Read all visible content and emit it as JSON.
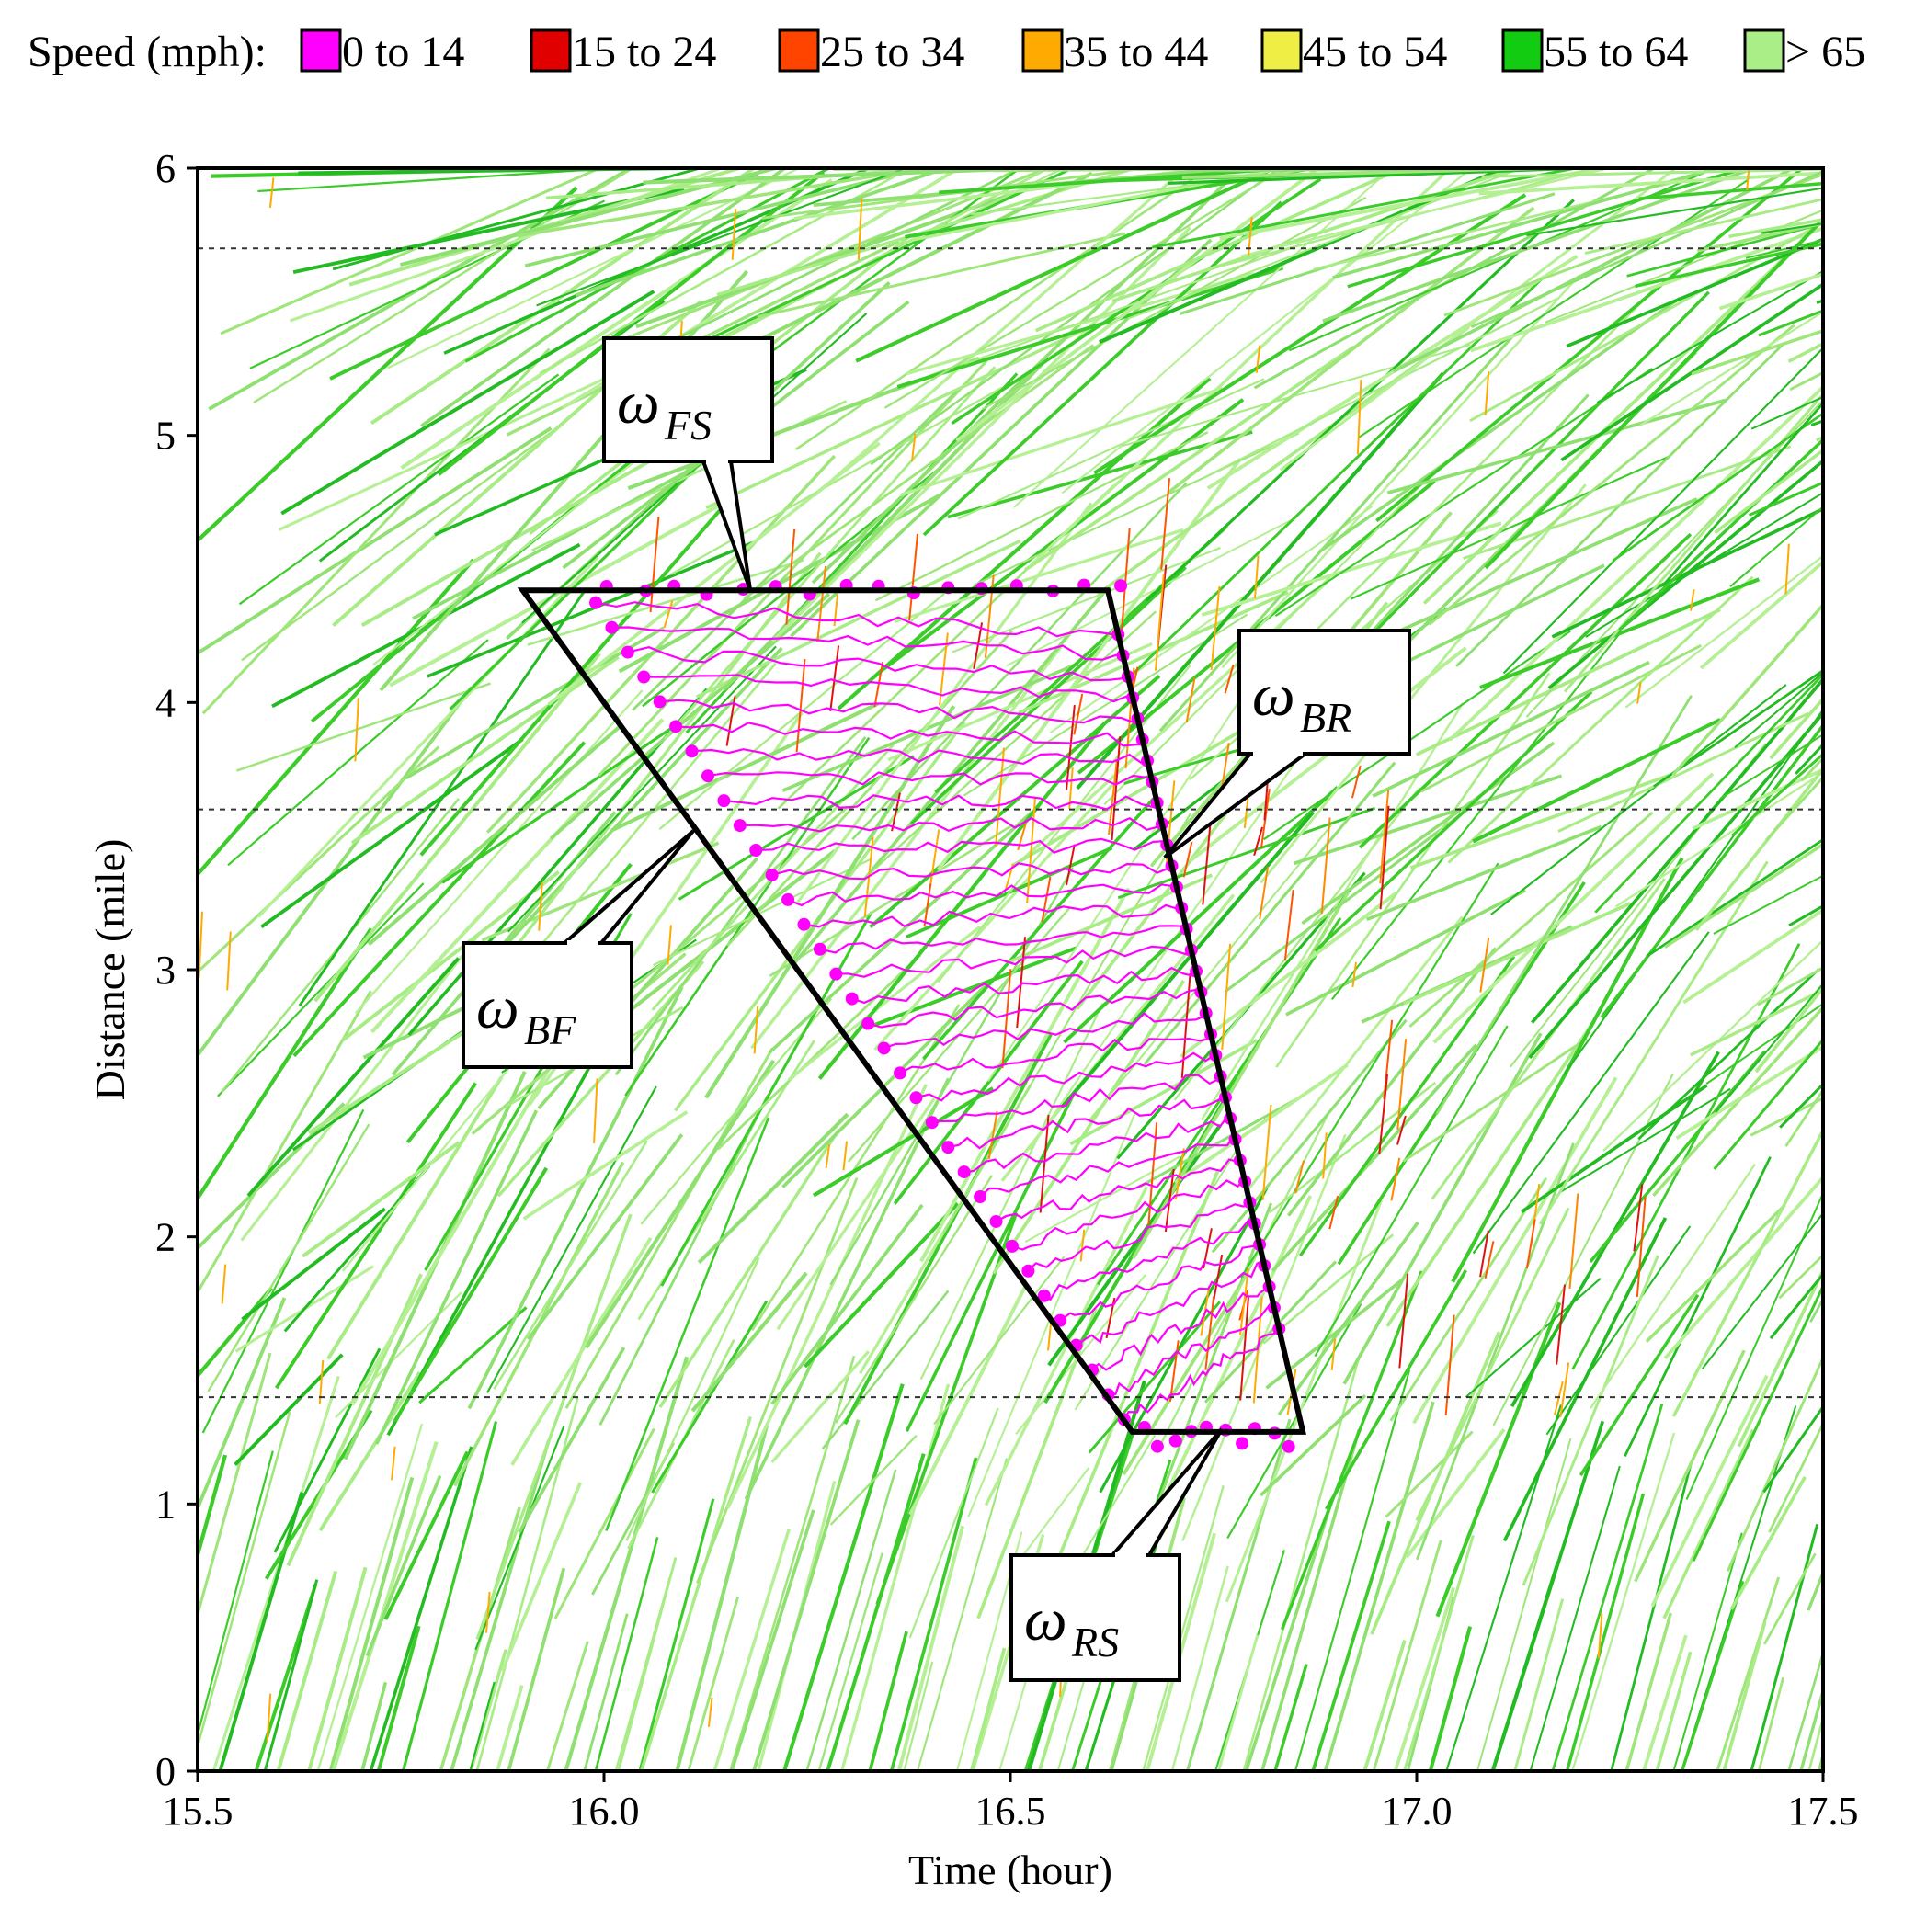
{
  "chart_data": {
    "type": "line",
    "title": "",
    "xlabel": "Time (hour)",
    "ylabel": "Distance (mile)",
    "xlim": [
      15.5,
      17.5
    ],
    "ylim": [
      0,
      6
    ],
    "x_ticks": [
      "15.5",
      "16.0",
      "16.5",
      "17.0",
      "17.5"
    ],
    "y_ticks": [
      "0",
      "1",
      "2",
      "3",
      "4",
      "5",
      "6"
    ],
    "grid": false,
    "reference_lines_y": [
      1.4,
      3.6,
      5.7
    ],
    "legend": {
      "title": "Speed (mph):",
      "placement": "top",
      "items": [
        {
          "label": "0 to 14",
          "color": "#ff00ff"
        },
        {
          "label": "15 to 24",
          "color": "#e00000"
        },
        {
          "label": "25 to 34",
          "color": "#ff4400"
        },
        {
          "label": "35 to 44",
          "color": "#ffaa00"
        },
        {
          "label": "45 to 54",
          "color": "#eeee44"
        },
        {
          "label": "55 to 64",
          "color": "#11cc11"
        },
        {
          "label": "> 65",
          "color": "#aaee88"
        }
      ]
    },
    "shockwave_boundary": [
      [
        15.9,
        4.42
      ],
      [
        16.62,
        4.42
      ],
      [
        16.86,
        1.27
      ],
      [
        16.65,
        1.27
      ]
    ],
    "annotations": [
      {
        "label": "ω",
        "subscript": "FS",
        "target": [
          16.18,
          4.42
        ]
      },
      {
        "label": "ω",
        "subscript": "BR",
        "target": [
          16.69,
          3.42
        ]
      },
      {
        "label": "ω",
        "subscript": "BF",
        "target": [
          16.11,
          3.52
        ]
      },
      {
        "label": "ω",
        "subscript": "RS",
        "target": [
          16.76,
          1.28
        ]
      }
    ]
  }
}
